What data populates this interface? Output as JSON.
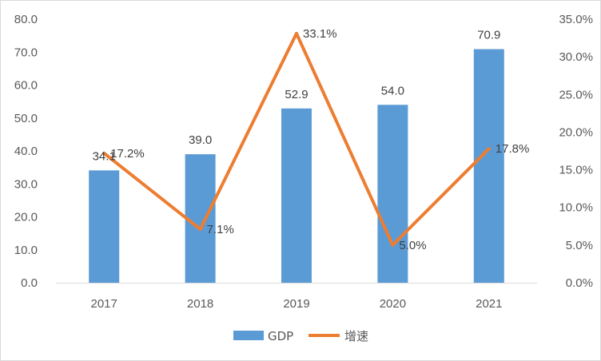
{
  "chart_data": {
    "type": "bar",
    "categories": [
      "2017",
      "2018",
      "2019",
      "2020",
      "2021"
    ],
    "series": [
      {
        "name": "GDP",
        "type": "bar",
        "axis": "left",
        "values": [
          34.1,
          39.0,
          52.9,
          54.0,
          70.9
        ],
        "labels": [
          "34.1",
          "39.0",
          "52.9",
          "54.0",
          "70.9"
        ],
        "color": "#5b9bd5"
      },
      {
        "name": "增速",
        "type": "line",
        "axis": "right",
        "values": [
          17.2,
          7.1,
          33.1,
          5.0,
          17.8
        ],
        "labels": [
          "17.2%",
          "7.1%",
          "33.1%",
          "5.0%",
          "17.8%"
        ],
        "color": "#ed7d31"
      }
    ],
    "y_left": {
      "range": [
        0,
        80
      ],
      "ticks": [
        "0.0",
        "10.0",
        "20.0",
        "30.0",
        "40.0",
        "50.0",
        "60.0",
        "70.0",
        "80.0"
      ]
    },
    "y_right": {
      "range": [
        0,
        35
      ],
      "ticks": [
        "0.0%",
        "5.0%",
        "10.0%",
        "15.0%",
        "20.0%",
        "25.0%",
        "30.0%",
        "35.0%"
      ]
    },
    "grid": false,
    "legend_position": "bottom"
  }
}
